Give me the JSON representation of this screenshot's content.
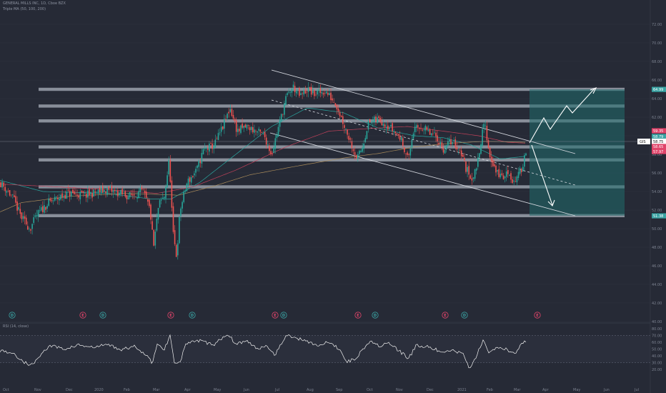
{
  "header": {
    "symbol_line": "GENERAL MILLS INC, 1D, Cboe BZX",
    "indicator_line": "Triple MA (50, 100, 200)",
    "rsi_label": "RSI (14, close)"
  },
  "chart_data": {
    "type": "candlestick",
    "title": "",
    "price_axis": {
      "min": 38,
      "max": 73,
      "ticks": [
        40,
        42,
        44,
        46,
        48,
        50,
        52,
        54,
        56,
        58,
        60,
        62,
        64,
        66,
        68,
        70,
        72
      ],
      "labels": [
        "40.00",
        "42.00",
        "44.00",
        "46.00",
        "48.00",
        "50.00",
        "52.00",
        "54.00",
        "56.00",
        "58.00",
        "60.00",
        "62.00",
        "64.00",
        "66.00",
        "68.00",
        "70.00",
        "72.00"
      ]
    },
    "time_axis": {
      "labels": [
        "Oct",
        "Nov",
        "Dec",
        "2020",
        "Feb",
        "Mar",
        "Apr",
        "May",
        "Jun",
        "Jul",
        "Aug",
        "Sep",
        "Oct",
        "Nov",
        "Dec",
        "2021",
        "Feb",
        "Mar",
        "Apr",
        "May",
        "Jun",
        "Jul"
      ]
    },
    "price_tags": [
      {
        "label": "64.99",
        "value": 64.99,
        "color": "#3aa3a3"
      },
      {
        "label": "59.35",
        "value": 59.35,
        "color": "#e0446a"
      },
      {
        "label": "58.79",
        "value": 58.79,
        "color": "#3aa3a3"
      },
      {
        "label": "GIS",
        "value_label": "58.75",
        "value": 58.75,
        "color": "#ffffff"
      },
      {
        "label": "58.65",
        "value": 58.65,
        "color": "#e0446a"
      },
      {
        "label": "57.97",
        "value": 57.97,
        "color": "#e0446a"
      },
      {
        "label": "51.38",
        "value": 51.38,
        "color": "#3aa3a3"
      }
    ],
    "support_resistance_levels": [
      65.0,
      63.2,
      61.6,
      58.8,
      57.4,
      54.5,
      51.4
    ],
    "event_markers": [
      {
        "type": "D",
        "color": "#3aa3a3"
      },
      {
        "type": "E",
        "color": "#e0446a"
      },
      {
        "type": "D",
        "color": "#3aa3a3"
      },
      {
        "type": "E",
        "color": "#e0446a"
      },
      {
        "type": "D",
        "color": "#3aa3a3"
      },
      {
        "type": "E",
        "color": "#e0446a"
      },
      {
        "type": "D",
        "color": "#3aa3a3"
      },
      {
        "type": "E",
        "color": "#e0446a"
      },
      {
        "type": "D",
        "color": "#3aa3a3"
      },
      {
        "type": "E",
        "color": "#e0446a"
      },
      {
        "type": "D",
        "color": "#3aa3a3"
      },
      {
        "type": "E",
        "color": "#e0446a"
      }
    ],
    "rsi_axis": {
      "ticks": [
        20,
        30,
        40,
        50,
        60,
        70,
        80
      ],
      "labels": [
        "20.00",
        "30.00",
        "40.00",
        "50.00",
        "60.00",
        "70.00",
        "80.00"
      ],
      "overbought": 70,
      "oversold": 30
    },
    "series_anchors": {
      "close": [
        [
          0,
          55.0
        ],
        [
          8,
          54.3
        ],
        [
          18,
          53.3
        ],
        [
          30,
          51.2
        ],
        [
          42,
          50.0
        ],
        [
          52,
          51.5
        ],
        [
          68,
          52.8
        ],
        [
          95,
          53.8
        ],
        [
          120,
          53.6
        ],
        [
          150,
          54.2
        ],
        [
          180,
          53.5
        ],
        [
          200,
          54.0
        ],
        [
          210,
          52.0
        ],
        [
          215,
          48.0
        ],
        [
          222,
          52.5
        ],
        [
          230,
          53.5
        ],
        [
          237,
          57.5
        ],
        [
          242,
          49.5
        ],
        [
          247,
          47.0
        ],
        [
          252,
          52.0
        ],
        [
          262,
          55.0
        ],
        [
          275,
          56.2
        ],
        [
          285,
          58.5
        ],
        [
          300,
          59.0
        ],
        [
          312,
          61.0
        ],
        [
          322,
          63.0
        ],
        [
          332,
          60.5
        ],
        [
          345,
          61.0
        ],
        [
          358,
          60.5
        ],
        [
          370,
          60.0
        ],
        [
          380,
          58.0
        ],
        [
          390,
          61.0
        ],
        [
          400,
          64.0
        ],
        [
          410,
          65.3
        ],
        [
          420,
          64.2
        ],
        [
          430,
          65.0
        ],
        [
          440,
          64.5
        ],
        [
          455,
          64.8
        ],
        [
          470,
          63.5
        ],
        [
          480,
          61.5
        ],
        [
          490,
          59.5
        ],
        [
          500,
          57.5
        ],
        [
          507,
          58.8
        ],
        [
          515,
          61.3
        ],
        [
          530,
          61.8
        ],
        [
          545,
          61.0
        ],
        [
          560,
          59.8
        ],
        [
          572,
          57.5
        ],
        [
          578,
          60.5
        ],
        [
          590,
          61.0
        ],
        [
          600,
          60.3
        ],
        [
          612,
          59.8
        ],
        [
          620,
          58.5
        ],
        [
          632,
          59.5
        ],
        [
          645,
          58.3
        ],
        [
          652,
          56.5
        ],
        [
          660,
          55.5
        ],
        [
          665,
          56.0
        ],
        [
          672,
          59.0
        ],
        [
          678,
          61.5
        ],
        [
          685,
          58.0
        ],
        [
          695,
          56.0
        ],
        [
          705,
          55.5
        ],
        [
          712,
          56.2
        ],
        [
          718,
          55.0
        ],
        [
          724,
          55.5
        ],
        [
          730,
          56.5
        ],
        [
          737,
          58.7
        ]
      ],
      "ma50": [
        [
          0,
          55.2
        ],
        [
          60,
          54.0
        ],
        [
          150,
          53.8
        ],
        [
          210,
          53.2
        ],
        [
          240,
          53.2
        ],
        [
          280,
          55.0
        ],
        [
          330,
          58.0
        ],
        [
          380,
          61.0
        ],
        [
          430,
          63.0
        ],
        [
          480,
          62.5
        ],
        [
          530,
          60.8
        ],
        [
          580,
          60.0
        ],
        [
          620,
          59.8
        ],
        [
          660,
          59.0
        ],
        [
          700,
          57.5
        ],
        [
          737,
          57.8
        ]
      ],
      "ma100": [
        [
          0,
          54.8
        ],
        [
          80,
          54.5
        ],
        [
          150,
          54.2
        ],
        [
          220,
          53.8
        ],
        [
          270,
          54.5
        ],
        [
          330,
          56.3
        ],
        [
          400,
          58.8
        ],
        [
          460,
          60.5
        ],
        [
          520,
          60.8
        ],
        [
          570,
          61.0
        ],
        [
          620,
          60.5
        ],
        [
          670,
          60.0
        ],
        [
          710,
          59.3
        ],
        [
          737,
          59.2
        ]
      ],
      "ma200": [
        [
          0,
          51.8
        ],
        [
          30,
          52.8
        ],
        [
          100,
          53.5
        ],
        [
          180,
          53.8
        ],
        [
          250,
          53.6
        ],
        [
          300,
          54.6
        ],
        [
          350,
          55.8
        ],
        [
          420,
          56.8
        ],
        [
          480,
          57.6
        ],
        [
          530,
          58.1
        ],
        [
          580,
          58.8
        ],
        [
          630,
          59.2
        ],
        [
          680,
          59.4
        ],
        [
          737,
          59.3
        ]
      ]
    },
    "rsi_anchors": [
      [
        0,
        48
      ],
      [
        15,
        45
      ],
      [
        25,
        38
      ],
      [
        35,
        30
      ],
      [
        45,
        26
      ],
      [
        55,
        40
      ],
      [
        70,
        55
      ],
      [
        90,
        50
      ],
      [
        110,
        56
      ],
      [
        130,
        52
      ],
      [
        150,
        57
      ],
      [
        170,
        49
      ],
      [
        190,
        54
      ],
      [
        205,
        40
      ],
      [
        213,
        30
      ],
      [
        220,
        56
      ],
      [
        230,
        50
      ],
      [
        238,
        70
      ],
      [
        244,
        32
      ],
      [
        252,
        30
      ],
      [
        260,
        58
      ],
      [
        280,
        62
      ],
      [
        300,
        56
      ],
      [
        318,
        73
      ],
      [
        330,
        58
      ],
      [
        345,
        62
      ],
      [
        360,
        50
      ],
      [
        372,
        56
      ],
      [
        385,
        42
      ],
      [
        400,
        70
      ],
      [
        415,
        66
      ],
      [
        430,
        62
      ],
      [
        445,
        55
      ],
      [
        460,
        60
      ],
      [
        475,
        50
      ],
      [
        485,
        32
      ],
      [
        495,
        34
      ],
      [
        505,
        46
      ],
      [
        518,
        63
      ],
      [
        530,
        55
      ],
      [
        545,
        58
      ],
      [
        560,
        46
      ],
      [
        572,
        36
      ],
      [
        582,
        55
      ],
      [
        595,
        54
      ],
      [
        608,
        50
      ],
      [
        620,
        44
      ],
      [
        635,
        48
      ],
      [
        648,
        43
      ],
      [
        656,
        22
      ],
      [
        663,
        30
      ],
      [
        670,
        48
      ],
      [
        677,
        64
      ],
      [
        684,
        44
      ],
      [
        695,
        52
      ],
      [
        705,
        52
      ],
      [
        715,
        44
      ],
      [
        722,
        46
      ],
      [
        730,
        58
      ],
      [
        737,
        62
      ]
    ],
    "legend": ""
  }
}
